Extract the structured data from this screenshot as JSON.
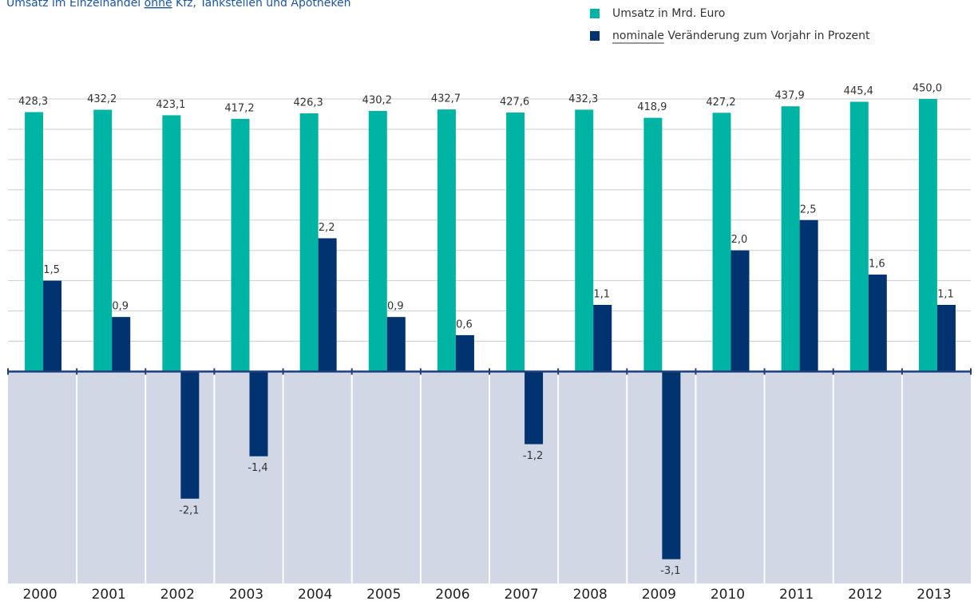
{
  "chart_data": {
    "type": "bar",
    "title": [
      {
        "text": "Umsatz im Einzelhandel ",
        "underline": false
      },
      {
        "text": "ohne",
        "underline": true
      },
      {
        "text": " Kfz, Tankstellen und Apotheken",
        "underline": false
      }
    ],
    "categories": [
      "2000",
      "2001",
      "2002",
      "2003",
      "2004",
      "2005",
      "2006",
      "2007",
      "2008",
      "2009",
      "2010",
      "2011",
      "2012",
      "2013"
    ],
    "series": [
      {
        "name": "Umsatz in Mrd. Euro",
        "color": "#00b4a3",
        "values": [
          428.3,
          432.2,
          423.1,
          417.2,
          426.3,
          430.2,
          432.7,
          427.6,
          432.3,
          418.9,
          427.2,
          437.9,
          445.4,
          450.0
        ],
        "value_labels": [
          "428,3",
          "432,2",
          "423,1",
          "417,2",
          "426,3",
          "430,2",
          "432,7",
          "427,6",
          "432,3",
          "418,9",
          "427,2",
          "437,9",
          "445,4",
          "450,0"
        ]
      },
      {
        "name": "nominale Veränderung zum Vorjahr in Prozent",
        "color": "#003370",
        "axis": "y2",
        "values": [
          1.5,
          0.9,
          -2.1,
          -1.4,
          2.2,
          0.9,
          0.6,
          -1.2,
          1.1,
          -3.1,
          2.0,
          2.5,
          1.6,
          1.1
        ],
        "value_labels": [
          "1,5",
          "0,9",
          "-2,1",
          "-1,4",
          "2,2",
          "0,9",
          "0,6",
          "-1,2",
          "1,1",
          "-3,1",
          "2,0",
          "2,5",
          "1,6",
          "1,1"
        ]
      }
    ],
    "ylim": [
      -350,
      450
    ],
    "y2lim": [
      -3.5,
      4.5
    ],
    "y2ticks": [
      0,
      0.5,
      1,
      1.5,
      2,
      2.5,
      3,
      3.5,
      4,
      4.5
    ],
    "grid": true,
    "legend": "top-right"
  }
}
